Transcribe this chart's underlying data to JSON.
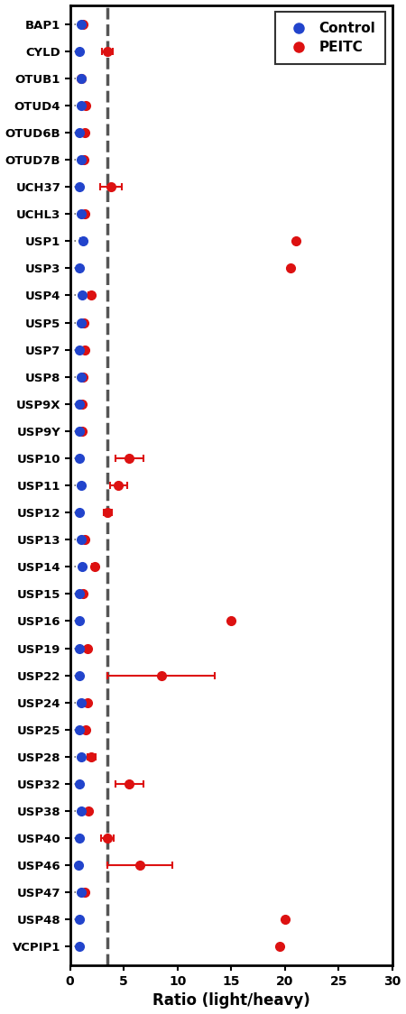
{
  "labels": [
    "BAP1",
    "CYLD",
    "OTUB1",
    "OTUD4",
    "OTUD6B",
    "OTUD7B",
    "UCH37",
    "UCHL3",
    "USP1",
    "USP3",
    "USP4",
    "USP5",
    "USP7",
    "USP8",
    "USP9X",
    "USP9Y",
    "USP10",
    "USP11",
    "USP12",
    "USP13",
    "USP14",
    "USP15",
    "USP16",
    "USP19",
    "USP22",
    "USP24",
    "USP25",
    "USP28",
    "USP32",
    "USP38",
    "USP40",
    "USP46",
    "USP47",
    "USP48",
    "VCPIP1"
  ],
  "control_values": [
    1.0,
    0.9,
    1.0,
    1.0,
    0.9,
    1.0,
    0.9,
    1.0,
    1.2,
    0.9,
    1.1,
    1.0,
    0.9,
    1.0,
    0.9,
    0.9,
    0.9,
    1.0,
    0.9,
    1.0,
    1.1,
    0.9,
    0.9,
    0.9,
    0.9,
    1.0,
    0.9,
    1.0,
    0.9,
    1.0,
    0.9,
    0.8,
    1.0,
    0.9,
    0.9
  ],
  "control_err": [
    0.0,
    0.0,
    0.0,
    0.05,
    0.0,
    0.0,
    0.0,
    0.0,
    0.25,
    0.0,
    0.1,
    0.0,
    0.0,
    0.0,
    0.0,
    0.0,
    0.0,
    0.0,
    0.0,
    0.0,
    0.1,
    0.0,
    0.0,
    0.0,
    0.0,
    0.0,
    0.0,
    0.05,
    0.0,
    0.0,
    0.0,
    0.0,
    0.05,
    0.0,
    0.0
  ],
  "peitc_values": [
    1.2,
    3.5,
    1.0,
    1.5,
    1.4,
    1.3,
    3.8,
    1.4,
    21.0,
    20.5,
    2.0,
    1.3,
    1.4,
    1.2,
    1.1,
    1.1,
    5.5,
    4.5,
    3.5,
    1.4,
    2.3,
    1.2,
    15.0,
    1.6,
    8.5,
    1.6,
    1.5,
    2.0,
    5.5,
    1.7,
    3.5,
    6.5,
    1.4,
    20.0,
    19.5
  ],
  "peitc_err": [
    0.12,
    0.5,
    0.0,
    0.0,
    0.08,
    0.12,
    1.0,
    0.08,
    0.0,
    0.0,
    0.25,
    0.0,
    0.08,
    0.0,
    0.0,
    0.0,
    1.3,
    0.8,
    0.4,
    0.0,
    0.25,
    0.0,
    0.0,
    0.08,
    5.0,
    0.0,
    0.08,
    0.4,
    1.3,
    0.0,
    0.6,
    3.0,
    0.08,
    0.0,
    0.0
  ],
  "dashed_line_x": 3.5,
  "xlim": [
    0,
    30
  ],
  "xticks": [
    0,
    5,
    10,
    15,
    20,
    25,
    30
  ],
  "xticklabels": [
    "0",
    "5",
    "10",
    "15",
    "20",
    "25",
    "30"
  ],
  "xlabel": "Ratio (light/heavy)",
  "control_color": "#2244cc",
  "peitc_color": "#dd1111",
  "dotted_line_color": "#666666",
  "dashed_line_color": "#555555",
  "background_color": "#ffffff",
  "marker_size": 7,
  "figsize": [
    4.5,
    11.24
  ],
  "dpi": 100
}
